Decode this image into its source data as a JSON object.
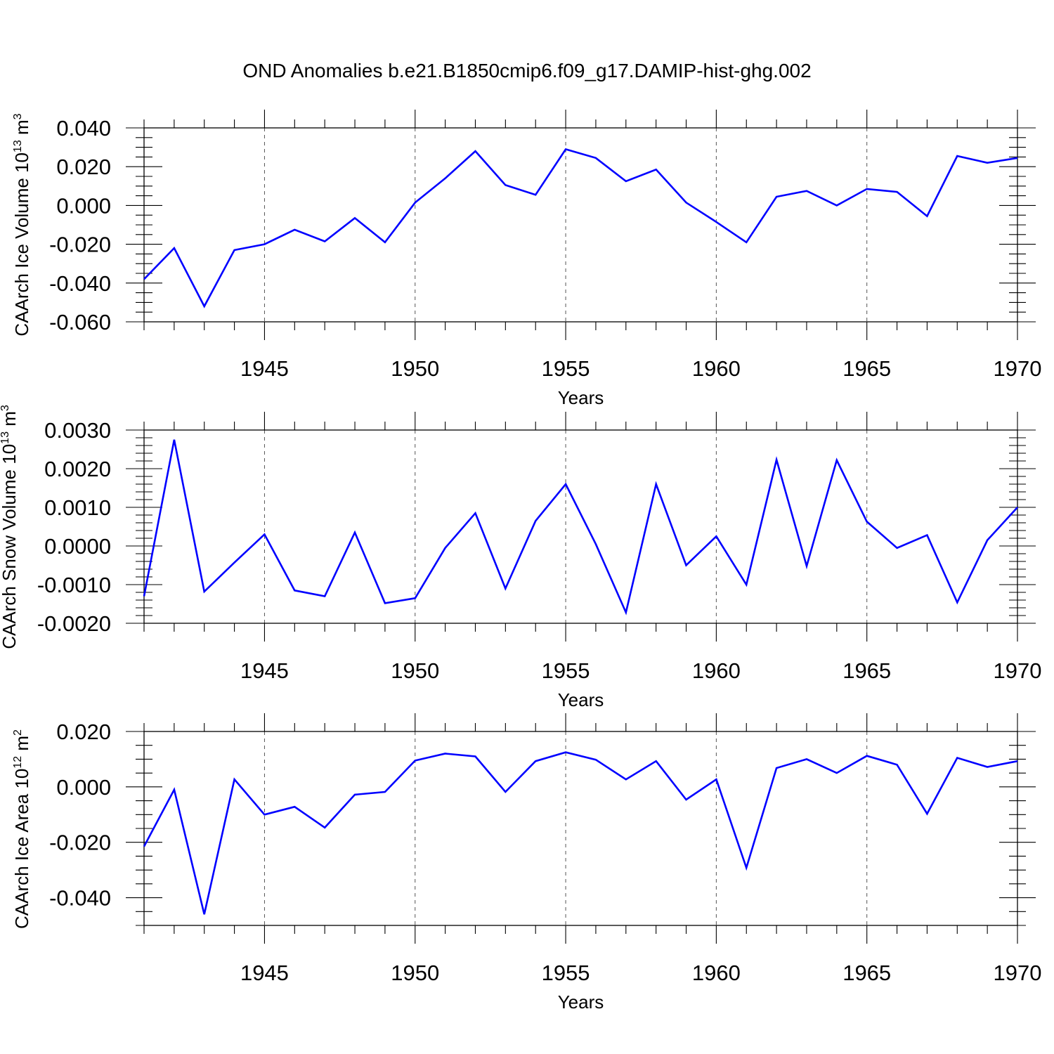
{
  "title": "OND Anomalies b.e21.B1850cmip6.f09_g17.DAMIP-hist-ghg.002",
  "colors": {
    "series": "#0000ff",
    "frame": "#000000",
    "grid": "#555555"
  },
  "chart_data": [
    {
      "type": "line",
      "ylabel": "CAArch Ice Volume 10",
      "ylabel_exp": "13",
      "ylabel_unit": " m",
      "ylabel_unit_exp": "3",
      "xlabel": "Years",
      "xlim": [
        1941,
        1970
      ],
      "ylim": [
        -0.06,
        0.04
      ],
      "yticks": [
        -0.06,
        -0.04,
        -0.02,
        0.0,
        0.02,
        0.04
      ],
      "ytick_labels": [
        "-0.060",
        "-0.040",
        "-0.020",
        "0.000",
        "0.020",
        "0.040"
      ],
      "yminor_step": 0.005,
      "xticks": [
        1945,
        1950,
        1955,
        1960,
        1965,
        1970
      ],
      "xtick_labels": [
        "1945",
        "1950",
        "1955",
        "1960",
        "1965",
        "1970"
      ],
      "grid_x": [
        1945,
        1950,
        1955,
        1960,
        1965
      ],
      "x": [
        1941,
        1942,
        1943,
        1944,
        1945,
        1946,
        1947,
        1948,
        1949,
        1950,
        1951,
        1952,
        1953,
        1954,
        1955,
        1956,
        1957,
        1958,
        1959,
        1960,
        1961,
        1962,
        1963,
        1964,
        1965,
        1966,
        1967,
        1968,
        1969,
        1970
      ],
      "values": [
        -0.038,
        -0.022,
        -0.052,
        -0.023,
        -0.02,
        -0.0125,
        -0.0185,
        -0.0065,
        -0.019,
        0.0015,
        0.014,
        0.028,
        0.0105,
        0.0055,
        0.029,
        0.0245,
        0.0125,
        0.0185,
        0.0015,
        -0.0085,
        -0.019,
        0.0045,
        0.0075,
        0.0,
        0.0085,
        0.007,
        -0.0055,
        0.0255,
        0.022,
        0.0245
      ]
    },
    {
      "type": "line",
      "ylabel": "CAArch Snow Volume 10",
      "ylabel_exp": "13",
      "ylabel_unit": " m",
      "ylabel_unit_exp": "3",
      "xlabel": "Years",
      "xlim": [
        1941,
        1970
      ],
      "ylim": [
        -0.002,
        0.003
      ],
      "yticks": [
        -0.002,
        -0.001,
        0.0,
        0.001,
        0.002,
        0.003
      ],
      "ytick_labels": [
        "-0.0020",
        "-0.0010",
        "0.0000",
        "0.0010",
        "0.0020",
        "0.0030"
      ],
      "yminor_step": 0.0002,
      "xticks": [
        1945,
        1950,
        1955,
        1960,
        1965,
        1970
      ],
      "xtick_labels": [
        "1945",
        "1950",
        "1955",
        "1960",
        "1965",
        "1970"
      ],
      "grid_x": [
        1945,
        1950,
        1955,
        1960,
        1965
      ],
      "x": [
        1941,
        1942,
        1943,
        1944,
        1945,
        1946,
        1947,
        1948,
        1949,
        1950,
        1951,
        1952,
        1953,
        1954,
        1955,
        1956,
        1957,
        1958,
        1959,
        1960,
        1961,
        1962,
        1963,
        1964,
        1965,
        1966,
        1967,
        1968,
        1969,
        1970
      ],
      "values": [
        -0.0013,
        0.00275,
        -0.00118,
        -0.00043,
        0.0003,
        -0.00115,
        -0.0013,
        0.00035,
        -0.00148,
        -0.00135,
        -5e-05,
        0.00085,
        -0.0011,
        0.00065,
        0.0016,
        5e-05,
        -0.00172,
        0.0016,
        -0.0005,
        0.00025,
        -0.001,
        0.00223,
        -0.00052,
        0.00222,
        0.00063,
        -5e-05,
        0.00028,
        -0.00146,
        0.00015,
        0.001
      ]
    },
    {
      "type": "line",
      "ylabel": "CAArch Ice Area 10",
      "ylabel_exp": "12",
      "ylabel_unit": " m",
      "ylabel_unit_exp": "2",
      "xlabel": "Years",
      "xlim": [
        1941,
        1970
      ],
      "ylim": [
        -0.05,
        0.02
      ],
      "yticks": [
        -0.04,
        -0.02,
        0.0,
        0.02
      ],
      "ytick_labels": [
        "-0.040",
        "-0.020",
        "0.000",
        "0.020"
      ],
      "yminor_step": 0.005,
      "xticks": [
        1945,
        1950,
        1955,
        1960,
        1965,
        1970
      ],
      "xtick_labels": [
        "1945",
        "1950",
        "1955",
        "1960",
        "1965",
        "1970"
      ],
      "grid_x": [
        1945,
        1950,
        1955,
        1960,
        1965
      ],
      "x": [
        1941,
        1942,
        1943,
        1944,
        1945,
        1946,
        1947,
        1948,
        1949,
        1950,
        1951,
        1952,
        1953,
        1954,
        1955,
        1956,
        1957,
        1958,
        1959,
        1960,
        1961,
        1962,
        1963,
        1964,
        1965,
        1966,
        1967,
        1968,
        1969,
        1970
      ],
      "values": [
        -0.0215,
        -0.001,
        -0.046,
        0.0027,
        -0.01,
        -0.0072,
        -0.0147,
        -0.0028,
        -0.0018,
        0.0095,
        0.012,
        0.011,
        -0.0018,
        0.0093,
        0.0125,
        0.0098,
        0.0027,
        0.0093,
        -0.0046,
        0.0027,
        -0.0292,
        0.0068,
        0.01,
        0.005,
        0.0112,
        0.008,
        -0.0097,
        0.0105,
        0.0072,
        0.0093
      ]
    }
  ]
}
